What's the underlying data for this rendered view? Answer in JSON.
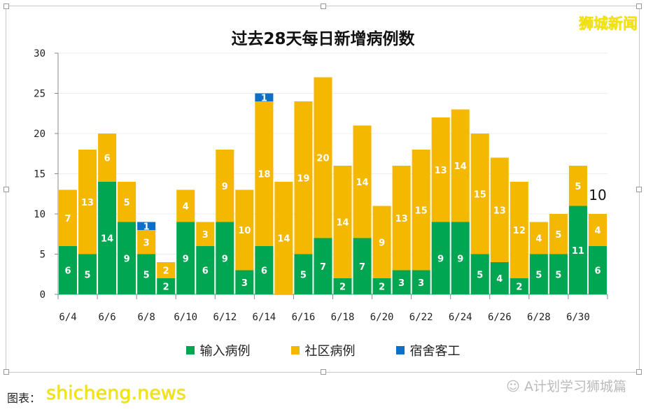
{
  "brand": "狮城新闻",
  "note": "图表：",
  "watermark": "shicheng.news",
  "wechat": "A计划学习狮城篇",
  "chart_data": {
    "type": "bar",
    "stacked": true,
    "title": "过去28天每日新增病例数",
    "categories": [
      "6/4",
      "6/5",
      "6/6",
      "6/7",
      "6/8",
      "6/9",
      "6/10",
      "6/11",
      "6/12",
      "6/13",
      "6/14",
      "6/15",
      "6/16",
      "6/17",
      "6/18",
      "6/19",
      "6/20",
      "6/21",
      "6/22",
      "6/23",
      "6/24",
      "6/25",
      "6/26",
      "6/27",
      "6/28",
      "6/29",
      "6/30",
      "7/1"
    ],
    "tick_labels": [
      "6/4",
      "6/6",
      "6/8",
      "6/10",
      "6/12",
      "6/14",
      "6/16",
      "6/18",
      "6/20",
      "6/22",
      "6/24",
      "6/26",
      "6/28",
      "6/30"
    ],
    "yticks": [
      0,
      5,
      10,
      15,
      20,
      25,
      30
    ],
    "ylim": [
      0,
      30
    ],
    "grid": true,
    "legend_position": "bottom",
    "series": [
      {
        "name": "输入病例",
        "color": "#00a651",
        "values": [
          6,
          5,
          14,
          9,
          5,
          2,
          9,
          6,
          9,
          3,
          6,
          0,
          5,
          7,
          2,
          7,
          2,
          3,
          3,
          9,
          9,
          5,
          4,
          2,
          5,
          5,
          11,
          6
        ]
      },
      {
        "name": "社区病例",
        "color": "#f5b800",
        "values": [
          7,
          13,
          6,
          5,
          3,
          2,
          4,
          3,
          9,
          10,
          18,
          14,
          19,
          20,
          14,
          14,
          9,
          13,
          15,
          13,
          14,
          15,
          13,
          12,
          4,
          5,
          5,
          4
        ]
      },
      {
        "name": "宿舍客工",
        "color": "#0f6fc6",
        "values": [
          0,
          0,
          0,
          0,
          1,
          0,
          0,
          0,
          0,
          0,
          1,
          0,
          0,
          0,
          0,
          0,
          0,
          0,
          0,
          0,
          0,
          0,
          0,
          0,
          0,
          0,
          0,
          0
        ]
      }
    ],
    "annotation": "10"
  }
}
